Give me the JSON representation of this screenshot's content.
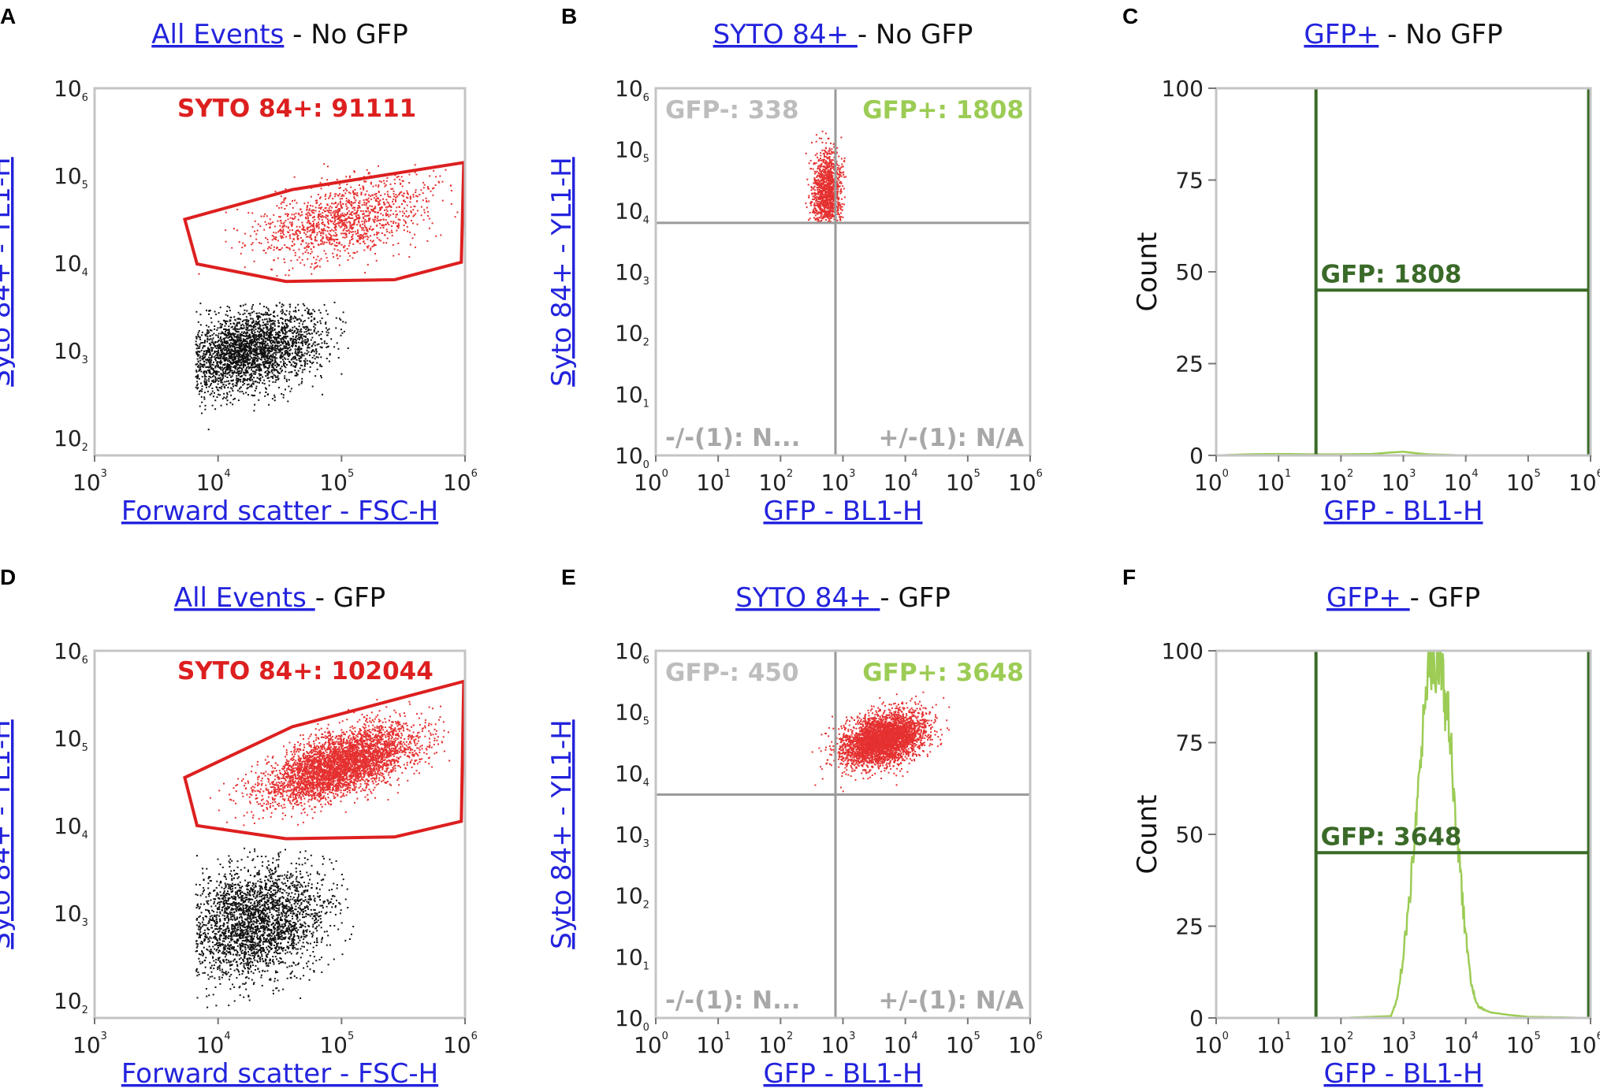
{
  "figure": {
    "colors": {
      "link": "#2323dd",
      "gate_red": "#dd1f1f",
      "event_red": "#e53030",
      "event_black": "#111111",
      "quad_grey": "#9a9a9a",
      "gfp_green": "#9ccc55",
      "hist_gate": "#3a6a28",
      "frame": "#c4c4c4"
    }
  },
  "chart_data": [
    {
      "id": "A",
      "letter": "A",
      "type": "scatter",
      "title_link": "All Events",
      "title_rest": " - No GFP",
      "xlabel": "Forward scatter - FSC-H",
      "ylabel": "Syto 84+ - YL1-H",
      "xscale": "log",
      "yscale": "log",
      "xlim": [
        3,
        6
      ],
      "ylim": [
        1.8,
        6
      ],
      "xtick_bases": [
        "10",
        "10",
        "10",
        "10"
      ],
      "xtick_exps": [
        "3",
        "4",
        "5",
        "6"
      ],
      "ytick_bases": [
        "10",
        "10",
        "10",
        "10",
        "10"
      ],
      "ytick_exps": [
        "2",
        "3",
        "4",
        "5",
        "6"
      ],
      "gate": {
        "label": "SYTO 84+: 91111",
        "polygon": [
          [
            3.73,
            4.5
          ],
          [
            3.83,
            3.99
          ],
          [
            4.55,
            3.79
          ],
          [
            5.43,
            3.81
          ],
          [
            5.97,
            4.01
          ],
          [
            5.99,
            5.15
          ],
          [
            4.6,
            4.84
          ]
        ]
      },
      "populations": [
        {
          "name": "syto84-positive",
          "color": "event_red",
          "count": 1300,
          "center": [
            5.0,
            4.5
          ],
          "spread": [
            0.35,
            0.24
          ],
          "corr": 0.45,
          "xrange": [
            3.8,
            5.95
          ],
          "yrange": [
            3.85,
            5.15
          ],
          "seed": 11
        },
        {
          "name": "debris",
          "color": "event_black",
          "count": 2600,
          "center": [
            4.25,
            3.0
          ],
          "spread": [
            0.3,
            0.24
          ],
          "corr": 0.35,
          "xrange": [
            3.82,
            5.1
          ],
          "yrange": [
            1.9,
            3.55
          ],
          "seed": 12
        }
      ]
    },
    {
      "id": "B",
      "letter": "B",
      "type": "quadrant_scatter",
      "title_link": "SYTO 84+ ",
      "title_rest": " - No GFP",
      "xlabel": "GFP - BL1-H",
      "ylabel": "Syto 84+ - YL1-H",
      "xscale": "log",
      "yscale": "log",
      "xlim": [
        0,
        6
      ],
      "ylim": [
        0,
        6
      ],
      "xtick_bases": [
        "10",
        "10",
        "10",
        "10",
        "10",
        "10",
        "10"
      ],
      "xtick_exps": [
        "0",
        "1",
        "2",
        "3",
        "4",
        "5",
        "6"
      ],
      "ytick_bases": [
        "10",
        "10",
        "10",
        "10",
        "10",
        "10",
        "10"
      ],
      "ytick_exps": [
        "0",
        "1",
        "2",
        "3",
        "4",
        "5",
        "6"
      ],
      "quadrant_x": 2.88,
      "quadrant_y": 3.8,
      "quad_labels": {
        "tl": "GFP-: 338",
        "tr": "GFP+: 1808",
        "bl": "-/-(1): N...",
        "br": "+/-(1): N/A"
      },
      "populations": [
        {
          "name": "no-gfp-events",
          "color": "event_red",
          "count": 1200,
          "center": [
            2.75,
            4.3
          ],
          "spread": [
            0.12,
            0.35
          ],
          "corr": 0.1,
          "xrange": [
            2.15,
            3.05
          ],
          "yrange": [
            3.8,
            5.3
          ],
          "seed": 21
        }
      ]
    },
    {
      "id": "C",
      "letter": "C",
      "type": "histogram",
      "title_link": "GFP+",
      "title_rest": " - No GFP",
      "xlabel": "GFP - BL1-H",
      "ylabel": "Count",
      "xscale": "log",
      "xlim": [
        0,
        6
      ],
      "ylim": [
        0,
        100
      ],
      "xtick_bases": [
        "10",
        "10",
        "10",
        "10",
        "10",
        "10",
        "10"
      ],
      "xtick_exps": [
        "0",
        "1",
        "2",
        "3",
        "4",
        "5",
        "6"
      ],
      "yticks": [
        "0",
        "25",
        "50",
        "75",
        "100"
      ],
      "gate": {
        "label": "GFP: 1808",
        "x_range": [
          1.6,
          5.97
        ],
        "level": 45
      },
      "histogram": {
        "x": [
          0,
          0.5,
          1,
          1.5,
          2,
          2.5,
          2.8,
          3.0,
          3.2,
          3.4,
          4,
          5,
          6
        ],
        "y": [
          0,
          0.3,
          0.4,
          0.3,
          0.3,
          0.4,
          0.8,
          1.0,
          0.6,
          0.3,
          0,
          0,
          0
        ]
      }
    },
    {
      "id": "D",
      "letter": "D",
      "type": "scatter",
      "title_link": "All Events ",
      "title_rest": " - GFP",
      "xlabel": "Forward scatter - FSC-H",
      "ylabel": "Syto 84+ - YL1-H",
      "xscale": "log",
      "yscale": "log",
      "xlim": [
        3,
        6
      ],
      "ylim": [
        1.8,
        6
      ],
      "xtick_bases": [
        "10",
        "10",
        "10",
        "10"
      ],
      "xtick_exps": [
        "3",
        "4",
        "5",
        "6"
      ],
      "ytick_bases": [
        "10",
        "10",
        "10",
        "10",
        "10"
      ],
      "ytick_exps": [
        "2",
        "3",
        "4",
        "5",
        "6"
      ],
      "gate": {
        "label": "SYTO 84+: 102044",
        "polygon": [
          [
            3.73,
            4.55
          ],
          [
            3.83,
            4.0
          ],
          [
            4.55,
            3.85
          ],
          [
            5.43,
            3.87
          ],
          [
            5.97,
            4.05
          ],
          [
            5.99,
            5.65
          ],
          [
            4.6,
            5.13
          ]
        ]
      },
      "populations": [
        {
          "name": "syto84-positive",
          "color": "event_red",
          "count": 4000,
          "center": [
            5.0,
            4.7
          ],
          "spread": [
            0.3,
            0.22
          ],
          "corr": 0.6,
          "xrange": [
            3.9,
            5.95
          ],
          "yrange": [
            3.95,
            5.5
          ],
          "seed": 31
        },
        {
          "name": "debris",
          "color": "event_black",
          "count": 2600,
          "center": [
            4.3,
            2.9
          ],
          "spread": [
            0.3,
            0.32
          ],
          "corr": 0.2,
          "xrange": [
            3.82,
            5.1
          ],
          "yrange": [
            1.9,
            3.75
          ],
          "seed": 32
        }
      ]
    },
    {
      "id": "E",
      "letter": "E",
      "type": "quadrant_scatter",
      "title_link": "SYTO 84+ ",
      "title_rest": " - GFP",
      "xlabel": "GFP - BL1-H",
      "ylabel": "Syto 84+ - YL1-H",
      "xscale": "log",
      "yscale": "log",
      "xlim": [
        0,
        6
      ],
      "ylim": [
        0,
        6
      ],
      "xtick_bases": [
        "10",
        "10",
        "10",
        "10",
        "10",
        "10",
        "10"
      ],
      "xtick_exps": [
        "0",
        "1",
        "2",
        "3",
        "4",
        "5",
        "6"
      ],
      "ytick_bases": [
        "10",
        "10",
        "10",
        "10",
        "10",
        "10",
        "10"
      ],
      "ytick_exps": [
        "0",
        "1",
        "2",
        "3",
        "4",
        "5",
        "6"
      ],
      "quadrant_x": 2.88,
      "quadrant_y": 3.65,
      "quad_labels": {
        "tl": "GFP-: 450",
        "tr": "GFP+: 3648",
        "bl": "-/-(1): N...",
        "br": "+/-(1): N/A"
      },
      "populations": [
        {
          "name": "gfp-events",
          "color": "event_red",
          "count": 3600,
          "center": [
            3.65,
            4.55
          ],
          "spread": [
            0.32,
            0.22
          ],
          "corr": 0.35,
          "xrange": [
            1.9,
            5.3
          ],
          "yrange": [
            3.7,
            5.35
          ],
          "seed": 41
        }
      ]
    },
    {
      "id": "F",
      "letter": "F",
      "type": "histogram",
      "title_link": "GFP+ ",
      "title_rest": " - GFP",
      "xlabel": "GFP - BL1-H",
      "ylabel": "Count",
      "xscale": "log",
      "xlim": [
        0,
        6
      ],
      "ylim": [
        0,
        100
      ],
      "xtick_bases": [
        "10",
        "10",
        "10",
        "10",
        "10",
        "10",
        "10"
      ],
      "xtick_exps": [
        "0",
        "1",
        "2",
        "3",
        "4",
        "5",
        "6"
      ],
      "yticks": [
        "0",
        "25",
        "50",
        "75",
        "100"
      ],
      "gate": {
        "label": "GFP: 3648",
        "x_range": [
          1.6,
          5.97
        ],
        "level": 45
      },
      "histogram": {
        "x": [
          0,
          1.0,
          2.0,
          2.8,
          2.9,
          3.0,
          3.1,
          3.2,
          3.3,
          3.4,
          3.5,
          3.6,
          3.7,
          3.8,
          3.9,
          4.0,
          4.1,
          4.2,
          4.4,
          4.7,
          5.0,
          5.4,
          6.0
        ],
        "y": [
          0,
          0,
          0,
          0.5,
          5,
          17,
          33,
          54,
          76,
          92,
          100,
          96,
          84,
          64,
          42,
          22,
          8,
          3,
          1.5,
          0.8,
          0.3,
          0.2,
          0
        ]
      }
    }
  ]
}
